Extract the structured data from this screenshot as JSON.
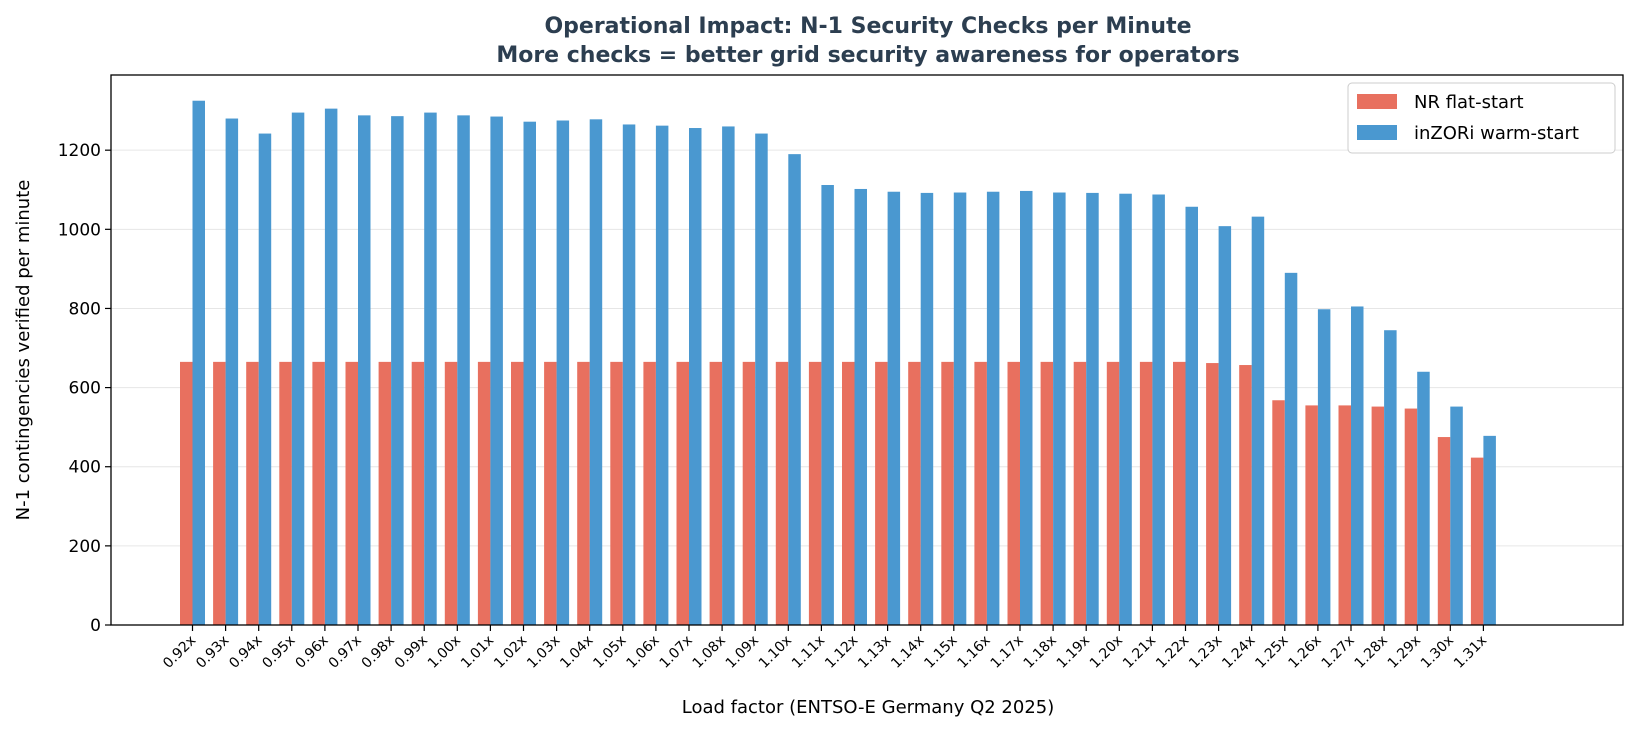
{
  "chart_data": {
    "type": "bar",
    "title": "Operational Impact: N-1 Security Checks per Minute",
    "subtitle": "More checks = better grid security awareness for operators",
    "xlabel": "Load factor (ENTSO-E Germany Q2 2025)",
    "ylabel": "N-1 contingencies verified per minute",
    "ylim": [
      0,
      1390
    ],
    "yticks": [
      0,
      200,
      400,
      600,
      800,
      1000,
      1200
    ],
    "grid": "horizontal",
    "legend_position": "top-right",
    "categories": [
      "0.92x",
      "0.93x",
      "0.94x",
      "0.95x",
      "0.96x",
      "0.97x",
      "0.98x",
      "0.99x",
      "1.00x",
      "1.01x",
      "1.02x",
      "1.03x",
      "1.04x",
      "1.05x",
      "1.06x",
      "1.07x",
      "1.08x",
      "1.09x",
      "1.10x",
      "1.11x",
      "1.12x",
      "1.13x",
      "1.14x",
      "1.15x",
      "1.16x",
      "1.17x",
      "1.18x",
      "1.19x",
      "1.20x",
      "1.21x",
      "1.22x",
      "1.23x",
      "1.24x",
      "1.25x",
      "1.26x",
      "1.27x",
      "1.28x",
      "1.29x",
      "1.30x",
      "1.31x"
    ],
    "series": [
      {
        "name": "NR flat-start",
        "color": "#e8705f",
        "values": [
          665,
          665,
          665,
          665,
          665,
          665,
          665,
          665,
          665,
          665,
          665,
          665,
          665,
          665,
          665,
          665,
          665,
          665,
          665,
          665,
          665,
          665,
          665,
          665,
          665,
          665,
          665,
          665,
          665,
          665,
          665,
          662,
          657,
          568,
          555,
          555,
          552,
          547,
          475,
          423
        ]
      },
      {
        "name": "inZORi warm-start",
        "color": "#4a98d0",
        "values": [
          1325,
          1280,
          1242,
          1295,
          1305,
          1288,
          1286,
          1295,
          1288,
          1285,
          1272,
          1275,
          1278,
          1265,
          1262,
          1256,
          1260,
          1242,
          1190,
          1112,
          1102,
          1095,
          1092,
          1093,
          1095,
          1097,
          1093,
          1092,
          1090,
          1088,
          1057,
          1008,
          1032,
          890,
          798,
          805,
          745,
          640,
          552,
          478
        ]
      }
    ]
  },
  "colors": {
    "title": "#2c3e50",
    "grid": "#e6e6e6",
    "axis": "#000000"
  }
}
